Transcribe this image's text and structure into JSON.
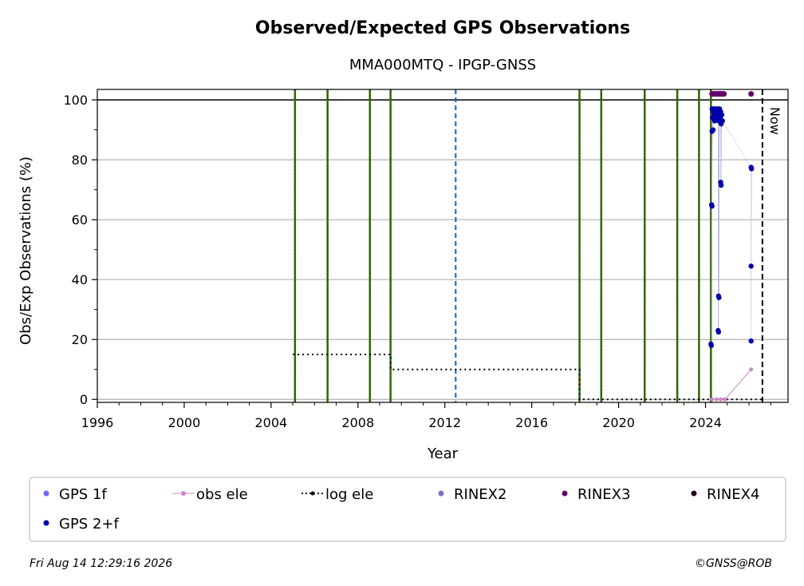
{
  "chart_data": {
    "type": "scatter",
    "title": "Observed/Expected GPS Observations",
    "subtitle": "MMA000MTQ - IPGP-GNSS",
    "xlabel": "Year",
    "ylabel": "Obs/Exp Observations (%)",
    "xlim": [
      1996,
      2027.8
    ],
    "ylim": [
      -1,
      103.5
    ],
    "x_ticks": [
      1996,
      2000,
      2004,
      2008,
      2012,
      2016,
      2020,
      2024
    ],
    "y_ticks": [
      0,
      20,
      40,
      60,
      80,
      100
    ],
    "grid": "horizontal",
    "reference_line": 100,
    "now_label": "Now",
    "now_x": 2026.62,
    "event_lines_green_red": [
      2005.1,
      2006.6,
      2008.55,
      2009.5,
      2018.2,
      2019.2,
      2021.2,
      2022.7,
      2023.7,
      2024.25
    ],
    "event_lines_blue_dashed": [
      2012.5
    ],
    "log_ele": {
      "name": "log ele",
      "points": [
        [
          2005.0,
          15
        ],
        [
          2009.5,
          15
        ],
        [
          2009.5,
          10
        ],
        [
          2018.2,
          10
        ],
        [
          2018.2,
          0
        ],
        [
          2026.6,
          0
        ]
      ]
    },
    "obs_ele": {
      "name": "obs ele",
      "points": [
        [
          2024.3,
          0
        ],
        [
          2024.5,
          0
        ],
        [
          2024.7,
          0
        ],
        [
          2024.9,
          0
        ],
        [
          2026.1,
          10
        ]
      ]
    },
    "rinex3": {
      "name": "RINEX3",
      "points": [
        [
          2024.3,
          102
        ],
        [
          2024.35,
          102
        ],
        [
          2024.4,
          102
        ],
        [
          2024.45,
          102
        ],
        [
          2024.5,
          102
        ],
        [
          2024.55,
          102
        ],
        [
          2024.6,
          102
        ],
        [
          2024.65,
          102
        ],
        [
          2024.7,
          102
        ],
        [
          2024.75,
          102
        ],
        [
          2024.8,
          102
        ],
        [
          2024.85,
          102
        ],
        [
          2026.1,
          102
        ]
      ]
    },
    "gps_2f": {
      "name": "GPS 2+f",
      "points": [
        [
          2024.3,
          97
        ],
        [
          2024.32,
          94
        ],
        [
          2024.35,
          96
        ],
        [
          2024.38,
          97
        ],
        [
          2024.4,
          95
        ],
        [
          2024.42,
          93
        ],
        [
          2024.45,
          96
        ],
        [
          2024.48,
          97
        ],
        [
          2024.5,
          94
        ],
        [
          2024.52,
          95
        ],
        [
          2024.55,
          97
        ],
        [
          2024.58,
          96
        ],
        [
          2024.6,
          93
        ],
        [
          2024.62,
          95
        ],
        [
          2024.65,
          97
        ],
        [
          2024.68,
          94
        ],
        [
          2024.7,
          96
        ],
        [
          2024.72,
          92
        ],
        [
          2024.75,
          95
        ],
        [
          2024.78,
          93
        ],
        [
          2024.3,
          89.5
        ],
        [
          2024.35,
          90
        ],
        [
          2024.28,
          65
        ],
        [
          2024.3,
          64.5
        ],
        [
          2024.7,
          72.5
        ],
        [
          2024.72,
          71.5
        ],
        [
          2024.6,
          34.5
        ],
        [
          2024.62,
          34
        ],
        [
          2024.58,
          23
        ],
        [
          2024.6,
          22.5
        ],
        [
          2024.25,
          18.5
        ],
        [
          2024.27,
          18
        ],
        [
          2026.1,
          77.5
        ],
        [
          2026.12,
          77
        ],
        [
          2026.1,
          44.5
        ],
        [
          2026.1,
          19.5
        ]
      ]
    },
    "legend": [
      {
        "label": "GPS 1f",
        "marker": "dot",
        "color": "#6a6af0"
      },
      {
        "label": "obs ele",
        "marker": "line-dot",
        "color": "#cc88cc"
      },
      {
        "label": "log ele",
        "marker": "dotted-line",
        "color": "#000000"
      },
      {
        "label": "RINEX2",
        "marker": "dot",
        "color": "#7b6fbf"
      },
      {
        "label": "RINEX3",
        "marker": "dot",
        "color": "#660066"
      },
      {
        "label": "RINEX4",
        "marker": "dot",
        "color": "#220022"
      },
      {
        "label": "GPS 2+f",
        "marker": "dot",
        "color": "#0000aa"
      }
    ]
  },
  "footer": {
    "timestamp": "Fri Aug 14 12:29:16 2026",
    "credit": "©GNSS@ROB"
  },
  "colors": {
    "green": "#008000",
    "red": "#dd0000",
    "blue_dashed": "#1060c0",
    "grid": "#b0b0b0",
    "gps2f": "#0000aa",
    "rinex3": "#660066",
    "obs_ele": "#cc88cc"
  }
}
